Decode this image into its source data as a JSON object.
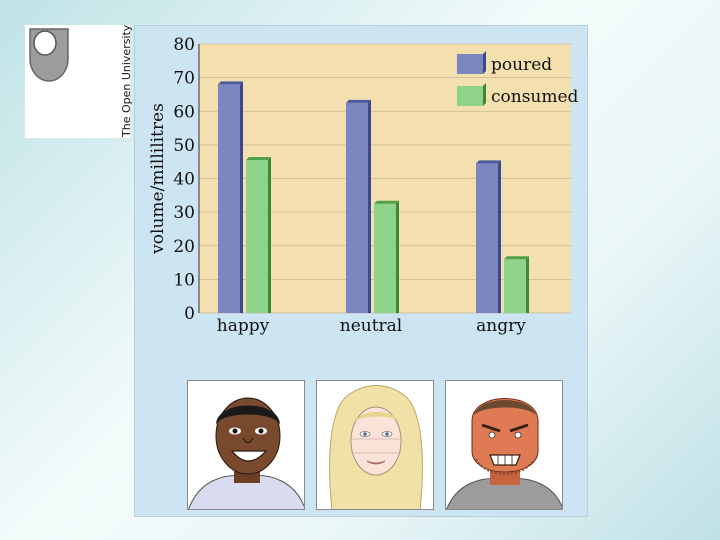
{
  "logo": {
    "text": "The Open University"
  },
  "chart_data": {
    "type": "bar",
    "categories": [
      "happy",
      "neutral",
      "angry"
    ],
    "series": [
      {
        "name": "poured",
        "values": [
          68,
          62.5,
          44.5
        ],
        "color": "#7b86c0"
      },
      {
        "name": "consumed",
        "values": [
          45.5,
          32.5,
          16
        ],
        "color": "#8fd28a"
      }
    ],
    "ylabel": "volume/millilitres",
    "xlabel": "",
    "ylim": [
      0,
      80
    ],
    "yticks": [
      0,
      10,
      20,
      30,
      40,
      50,
      60,
      70,
      80
    ],
    "grid": true,
    "legend_position": "top-right",
    "plot_background": "#f4dfae",
    "grid_color": "#c8b98f"
  },
  "faces": [
    {
      "name": "happy-face",
      "skin": "#7a4a2e",
      "hair": "#1a1a1a",
      "shirt": "#d9dcef"
    },
    {
      "name": "neutral-face",
      "skin": "#fbe3d9",
      "hair": "#f0e2a6",
      "shirt": "#ffffff"
    },
    {
      "name": "angry-face",
      "skin": "#e07a55",
      "hair": "#6b4a30",
      "shirt": "#9c9c9c"
    }
  ]
}
